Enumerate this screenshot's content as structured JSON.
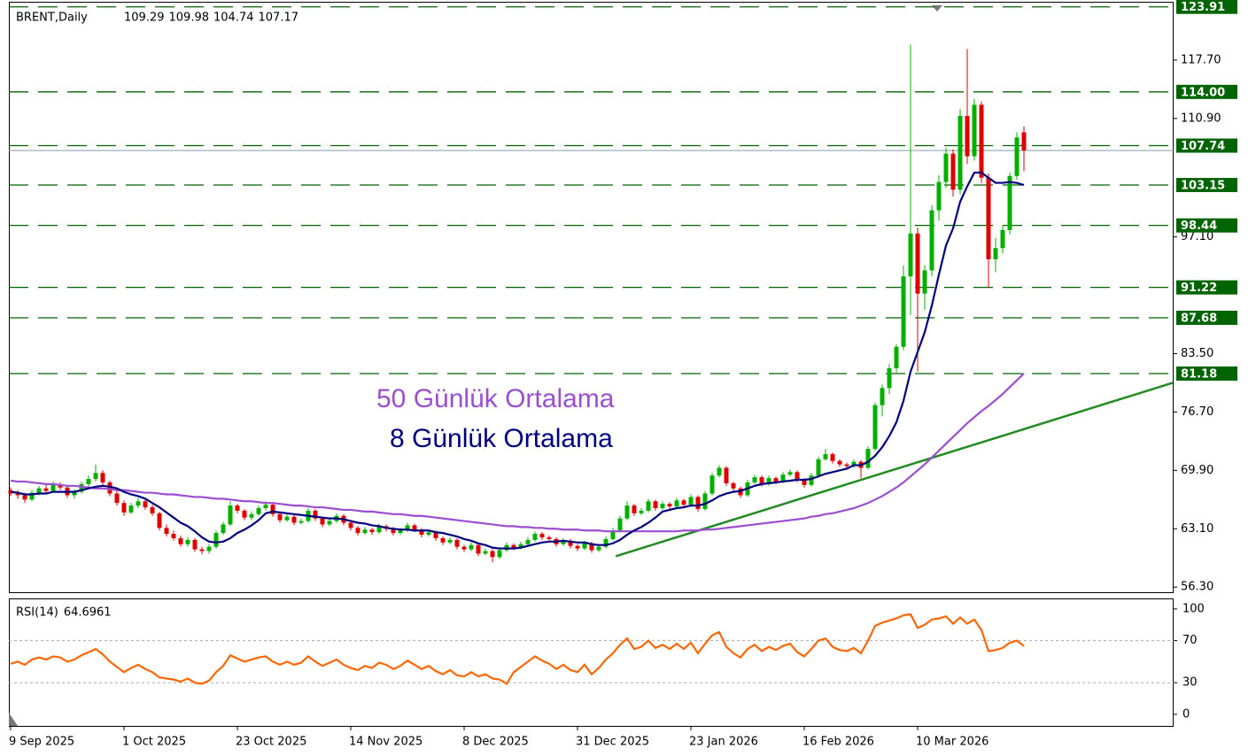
{
  "chart_data": {
    "type": "candlestick",
    "symbol": "BRENT,Daily",
    "up_color": "#00b000",
    "down_color": "#e00000",
    "ylim": [
      55.6,
      124.5
    ],
    "yticks": [
      {
        "value": 56.3,
        "label": "56.30"
      },
      {
        "value": 63.1,
        "label": "63.10"
      },
      {
        "value": 69.9,
        "label": "69.90"
      },
      {
        "value": 76.7,
        "label": "76.70"
      },
      {
        "value": 83.5,
        "label": "83.50"
      },
      {
        "value": 97.1,
        "label": "97.10"
      },
      {
        "value": 110.9,
        "label": "110.90"
      },
      {
        "value": 117.7,
        "label": "117.70"
      }
    ],
    "levels_color": "#006400",
    "levels": [
      {
        "value": 123.91,
        "label": "123.91"
      },
      {
        "value": 114,
        "label": "114.00"
      },
      {
        "value": 107.74,
        "label": "107.74"
      },
      {
        "value": 103.15,
        "label": "103.15"
      },
      {
        "value": 98.44,
        "label": "98.44"
      },
      {
        "value": 91.22,
        "label": "91.22"
      },
      {
        "value": 87.68,
        "label": "87.68"
      },
      {
        "value": 81.18,
        "label": "81.18"
      }
    ],
    "x_labels": [
      {
        "index": 0,
        "label": "9 Sep 2025"
      },
      {
        "index": 16,
        "label": "1 Oct 2025"
      },
      {
        "index": 32,
        "label": "23 Oct 2025"
      },
      {
        "index": 48,
        "label": "14 Nov 2025"
      },
      {
        "index": 64,
        "label": "8 Dec 2025"
      },
      {
        "index": 80,
        "label": "31 Dec 2025"
      },
      {
        "index": 96,
        "label": "23 Jan 2026"
      },
      {
        "index": 112,
        "label": "16 Feb 2026"
      },
      {
        "index": 128,
        "label": "10 Mar 2026"
      }
    ],
    "trendline": {
      "color": "#228b22",
      "points": [
        [
          85.4,
          59.9
        ],
        [
          164,
          80.1
        ]
      ]
    },
    "ohlc": [
      [
        67.6,
        67.9,
        66.9,
        67.2
      ],
      [
        67.2,
        67.6,
        66.6,
        67.0
      ],
      [
        67.0,
        67.3,
        66.1,
        66.5
      ],
      [
        66.5,
        67.6,
        66.3,
        67.3
      ],
      [
        67.3,
        68.1,
        67.0,
        67.8
      ],
      [
        67.8,
        68.2,
        67.2,
        67.5
      ],
      [
        67.5,
        68.6,
        67.3,
        68.2
      ],
      [
        68.2,
        68.5,
        67.6,
        67.9
      ],
      [
        67.9,
        68.1,
        66.7,
        67.0
      ],
      [
        67.0,
        67.7,
        66.6,
        67.4
      ],
      [
        67.4,
        68.6,
        67.2,
        68.3
      ],
      [
        68.3,
        69.3,
        68.0,
        68.9
      ],
      [
        68.9,
        70.6,
        68.6,
        69.6
      ],
      [
        69.6,
        69.9,
        68.2,
        68.5
      ],
      [
        68.5,
        68.7,
        66.9,
        67.2
      ],
      [
        67.2,
        67.5,
        65.8,
        66.1
      ],
      [
        66.1,
        66.4,
        64.6,
        65.0
      ],
      [
        65.0,
        66.1,
        64.8,
        65.8
      ],
      [
        65.8,
        66.7,
        65.5,
        66.3
      ],
      [
        66.3,
        66.5,
        65.3,
        65.6
      ],
      [
        65.6,
        65.9,
        64.6,
        64.9
      ],
      [
        64.9,
        65.1,
        62.9,
        63.2
      ],
      [
        63.2,
        63.6,
        62.2,
        62.5
      ],
      [
        62.5,
        62.9,
        61.7,
        62.0
      ],
      [
        62.0,
        62.3,
        61.0,
        61.3
      ],
      [
        61.3,
        62.1,
        61.0,
        61.8
      ],
      [
        61.8,
        62.0,
        60.4,
        60.7
      ],
      [
        60.7,
        61.0,
        60.1,
        60.5
      ],
      [
        60.5,
        61.3,
        60.2,
        61.0
      ],
      [
        61.0,
        62.9,
        60.8,
        62.6
      ],
      [
        62.6,
        63.9,
        62.4,
        63.6
      ],
      [
        63.6,
        66.3,
        63.4,
        65.8
      ],
      [
        65.8,
        66.0,
        64.9,
        65.2
      ],
      [
        65.2,
        65.4,
        64.1,
        64.4
      ],
      [
        64.4,
        65.1,
        64.1,
        64.8
      ],
      [
        64.8,
        65.8,
        64.6,
        65.5
      ],
      [
        65.5,
        66.3,
        65.2,
        65.9
      ],
      [
        65.9,
        66.1,
        64.5,
        64.8
      ],
      [
        64.8,
        65.0,
        63.8,
        64.1
      ],
      [
        64.1,
        64.8,
        63.9,
        64.5
      ],
      [
        64.5,
        64.7,
        63.5,
        63.8
      ],
      [
        63.8,
        64.3,
        63.6,
        64.0
      ],
      [
        64.0,
        65.5,
        63.8,
        65.2
      ],
      [
        65.2,
        65.4,
        64.0,
        64.3
      ],
      [
        64.3,
        64.5,
        63.3,
        63.6
      ],
      [
        63.6,
        64.3,
        63.4,
        64.0
      ],
      [
        64.0,
        64.9,
        63.8,
        64.6
      ],
      [
        64.6,
        64.8,
        63.5,
        63.8
      ],
      [
        63.8,
        64.0,
        62.9,
        63.2
      ],
      [
        63.2,
        63.4,
        62.3,
        62.6
      ],
      [
        62.6,
        63.3,
        62.4,
        63.0
      ],
      [
        63.0,
        63.2,
        62.4,
        62.7
      ],
      [
        62.7,
        63.7,
        62.5,
        63.4
      ],
      [
        63.4,
        63.6,
        62.8,
        63.1
      ],
      [
        63.1,
        63.3,
        62.3,
        62.6
      ],
      [
        62.6,
        63.2,
        62.4,
        62.9
      ],
      [
        62.9,
        63.8,
        62.7,
        63.5
      ],
      [
        63.5,
        63.7,
        62.7,
        63.0
      ],
      [
        63.0,
        63.2,
        62.1,
        62.4
      ],
      [
        62.4,
        63.0,
        62.2,
        62.7
      ],
      [
        62.7,
        62.9,
        61.7,
        62.0
      ],
      [
        62.0,
        62.2,
        61.2,
        61.5
      ],
      [
        61.5,
        62.1,
        61.3,
        61.8
      ],
      [
        61.8,
        62.0,
        60.7,
        61.0
      ],
      [
        61.0,
        61.2,
        60.4,
        60.7
      ],
      [
        60.7,
        61.5,
        60.5,
        61.2
      ],
      [
        61.2,
        61.4,
        59.9,
        60.2
      ],
      [
        60.2,
        60.8,
        60.0,
        60.5
      ],
      [
        60.5,
        60.7,
        59.2,
        59.8
      ],
      [
        59.8,
        60.9,
        59.6,
        60.6
      ],
      [
        60.6,
        61.5,
        60.4,
        61.2
      ],
      [
        61.2,
        61.4,
        60.6,
        60.9
      ],
      [
        60.9,
        61.6,
        60.7,
        61.3
      ],
      [
        61.3,
        62.1,
        61.1,
        61.8
      ],
      [
        61.8,
        62.8,
        61.6,
        62.5
      ],
      [
        62.5,
        62.7,
        61.8,
        62.1
      ],
      [
        62.1,
        62.3,
        61.6,
        61.9
      ],
      [
        61.9,
        62.1,
        61.0,
        61.3
      ],
      [
        61.3,
        62.0,
        61.1,
        61.7
      ],
      [
        61.7,
        61.9,
        60.8,
        61.1
      ],
      [
        61.1,
        61.3,
        60.5,
        60.8
      ],
      [
        60.8,
        61.7,
        60.6,
        61.4
      ],
      [
        61.4,
        61.6,
        60.3,
        60.6
      ],
      [
        60.6,
        61.3,
        60.4,
        61.0
      ],
      [
        61.0,
        62.2,
        60.8,
        61.9
      ],
      [
        61.9,
        63.2,
        61.7,
        62.9
      ],
      [
        62.9,
        64.6,
        62.7,
        64.3
      ],
      [
        64.3,
        66.3,
        64.1,
        65.8
      ],
      [
        65.8,
        66.0,
        64.6,
        64.9
      ],
      [
        64.9,
        65.5,
        64.7,
        65.2
      ],
      [
        65.2,
        66.6,
        65.0,
        66.3
      ],
      [
        66.3,
        66.5,
        65.2,
        65.5
      ],
      [
        65.5,
        66.3,
        65.3,
        66.0
      ],
      [
        66.0,
        66.2,
        65.4,
        65.7
      ],
      [
        65.7,
        66.7,
        65.5,
        66.4
      ],
      [
        66.4,
        66.6,
        65.6,
        65.9
      ],
      [
        65.9,
        67.1,
        65.7,
        66.8
      ],
      [
        66.8,
        67.0,
        65.1,
        65.4
      ],
      [
        65.4,
        67.5,
        65.2,
        67.2
      ],
      [
        67.2,
        69.6,
        67.0,
        69.3
      ],
      [
        69.3,
        70.5,
        69.1,
        70.2
      ],
      [
        70.2,
        70.4,
        68.1,
        68.4
      ],
      [
        68.4,
        68.6,
        67.5,
        67.8
      ],
      [
        67.8,
        68.0,
        66.7,
        67.0
      ],
      [
        67.0,
        68.8,
        66.8,
        68.5
      ],
      [
        68.5,
        69.4,
        68.3,
        69.1
      ],
      [
        69.1,
        69.3,
        68.0,
        68.3
      ],
      [
        68.3,
        69.3,
        68.1,
        69.0
      ],
      [
        69.0,
        69.2,
        68.3,
        68.6
      ],
      [
        68.6,
        69.7,
        68.4,
        69.4
      ],
      [
        69.4,
        70.0,
        69.2,
        69.7
      ],
      [
        69.7,
        69.9,
        68.5,
        68.8
      ],
      [
        68.8,
        69.0,
        67.9,
        68.2
      ],
      [
        68.2,
        69.6,
        68.0,
        69.3
      ],
      [
        69.3,
        71.5,
        69.1,
        71.2
      ],
      [
        71.2,
        72.4,
        71.0,
        71.8
      ],
      [
        71.8,
        72.0,
        70.7,
        71.0
      ],
      [
        71.0,
        71.2,
        70.3,
        70.6
      ],
      [
        70.6,
        70.8,
        70.1,
        70.4
      ],
      [
        70.4,
        71.2,
        70.2,
        70.9
      ],
      [
        70.9,
        71.1,
        69.0,
        70.2
      ],
      [
        70.2,
        72.7,
        70.0,
        72.4
      ],
      [
        72.4,
        77.8,
        72.2,
        77.5
      ],
      [
        77.5,
        79.9,
        76.2,
        79.5
      ],
      [
        79.5,
        82.3,
        78.8,
        81.8
      ],
      [
        81.8,
        84.6,
        81.3,
        84.3
      ],
      [
        84.3,
        93.8,
        83.9,
        92.5
      ],
      [
        92.5,
        119.5,
        88.0,
        97.5
      ],
      [
        97.5,
        98.2,
        81.4,
        90.5
      ],
      [
        90.5,
        93.8,
        88.6,
        93.2
      ],
      [
        93.2,
        100.8,
        92.5,
        100.2
      ],
      [
        100.2,
        104.3,
        99.0,
        103.5
      ],
      [
        103.5,
        107.5,
        102.8,
        106.8
      ],
      [
        106.8,
        107.3,
        101.8,
        102.6
      ],
      [
        102.6,
        112.0,
        102.1,
        111.2
      ],
      [
        111.2,
        119.0,
        105.6,
        106.5
      ],
      [
        106.5,
        113.2,
        106.0,
        112.5
      ],
      [
        112.5,
        112.9,
        103.4,
        104.0
      ],
      [
        104.0,
        104.5,
        91.2,
        94.5
      ],
      [
        94.5,
        97.0,
        93.0,
        95.8
      ],
      [
        95.8,
        98.4,
        95.2,
        97.9
      ],
      [
        97.9,
        104.6,
        97.4,
        104.2
      ],
      [
        104.2,
        109.3,
        103.8,
        108.7
      ],
      [
        109.29,
        109.98,
        104.74,
        107.17
      ]
    ],
    "series": [
      {
        "name": "50 Günlük Ortalama",
        "color": "#9b4fd0",
        "values": [
          68.7,
          68.6,
          68.6,
          68.5,
          68.4,
          68.3,
          68.3,
          68.2,
          68.1,
          68.1,
          68.0,
          67.9,
          67.8,
          67.8,
          67.7,
          67.6,
          67.6,
          67.5,
          67.4,
          67.3,
          67.3,
          67.2,
          67.1,
          67.1,
          67.0,
          66.9,
          66.8,
          66.8,
          66.7,
          66.6,
          66.6,
          66.5,
          66.4,
          66.3,
          66.3,
          66.2,
          66.1,
          66.1,
          66.0,
          65.9,
          65.8,
          65.8,
          65.7,
          65.6,
          65.6,
          65.5,
          65.4,
          65.3,
          65.3,
          65.2,
          65.1,
          65.1,
          65.0,
          64.9,
          64.8,
          64.8,
          64.7,
          64.6,
          64.6,
          64.5,
          64.4,
          64.3,
          64.2,
          64.1,
          64.0,
          63.9,
          63.8,
          63.7,
          63.6,
          63.5,
          63.4,
          63.4,
          63.3,
          63.3,
          63.2,
          63.2,
          63.1,
          63.1,
          63.0,
          63.0,
          63.0,
          62.9,
          62.9,
          62.9,
          62.8,
          62.8,
          62.8,
          62.8,
          62.8,
          62.8,
          62.8,
          62.8,
          62.8,
          62.8,
          62.8,
          62.9,
          62.9,
          62.9,
          63.0,
          63.0,
          63.1,
          63.2,
          63.3,
          63.4,
          63.5,
          63.6,
          63.7,
          63.8,
          63.9,
          64.0,
          64.1,
          64.2,
          64.3,
          64.5,
          64.6,
          64.8,
          64.9,
          65.1,
          65.3,
          65.5,
          65.8,
          66.1,
          66.5,
          66.9,
          67.4,
          67.9,
          68.5,
          69.2,
          69.9,
          70.6,
          71.4,
          72.2,
          73.0,
          73.8,
          74.6,
          75.4,
          76.1,
          76.8,
          77.4,
          78.1,
          78.8,
          79.6,
          80.4,
          81.2
        ]
      },
      {
        "name": "8 Günlük Ortalama",
        "color": "#000080",
        "values": [
          67.4,
          67.3,
          67.1,
          67.1,
          67.2,
          67.2,
          67.4,
          67.4,
          67.4,
          67.4,
          67.6,
          67.8,
          68.0,
          68.1,
          68.0,
          67.8,
          67.4,
          67.1,
          66.9,
          66.6,
          66.1,
          65.6,
          65.0,
          64.4,
          63.8,
          63.4,
          62.8,
          62.1,
          61.6,
          61.5,
          61.6,
          62.0,
          62.6,
          63.0,
          63.5,
          64.1,
          64.9,
          65.1,
          65.0,
          64.9,
          64.8,
          64.7,
          64.6,
          64.5,
          64.4,
          64.3,
          64.3,
          64.2,
          64.0,
          63.8,
          63.7,
          63.5,
          63.4,
          63.2,
          63.1,
          63.0,
          63.0,
          62.9,
          62.9,
          62.9,
          62.7,
          62.6,
          62.4,
          62.2,
          61.9,
          61.7,
          61.4,
          61.2,
          60.9,
          60.8,
          60.8,
          60.8,
          60.9,
          61.1,
          61.3,
          61.5,
          61.6,
          61.6,
          61.7,
          61.6,
          61.5,
          61.5,
          61.3,
          61.2,
          61.2,
          61.4,
          61.8,
          62.4,
          62.9,
          63.3,
          63.8,
          64.4,
          65.1,
          65.3,
          65.5,
          65.6,
          65.8,
          65.8,
          66.0,
          66.4,
          66.9,
          67.2,
          67.4,
          67.5,
          67.8,
          68.1,
          68.3,
          68.4,
          68.5,
          68.6,
          68.7,
          68.8,
          68.8,
          68.9,
          69.2,
          69.5,
          69.7,
          69.9,
          70.1,
          70.5,
          70.5,
          70.9,
          71.6,
          72.6,
          73.9,
          75.5,
          78.0,
          81.4,
          83.7,
          86.0,
          89.1,
          92.7,
          96.1,
          98.1,
          101.2,
          103.0,
          104.6,
          104.6,
          104.0,
          103.4,
          103.4,
          103.5,
          103.4,
          103.15
        ]
      }
    ],
    "rsi": {
      "label": "RSI(14)",
      "color": "#ff6600",
      "ylim": [
        -11,
        110
      ],
      "yticks": [
        0,
        30,
        70,
        100
      ],
      "levels": [
        30,
        70
      ],
      "values": [
        48,
        50,
        47,
        52,
        54,
        52,
        55,
        54,
        50,
        52,
        56,
        59,
        62,
        57,
        50,
        45,
        40,
        44,
        47,
        43,
        40,
        35,
        34,
        33,
        31,
        34,
        30,
        29,
        32,
        40,
        46,
        56,
        53,
        50,
        52,
        54,
        55,
        50,
        47,
        50,
        47,
        49,
        55,
        50,
        46,
        49,
        52,
        47,
        44,
        42,
        46,
        44,
        49,
        47,
        43,
        46,
        51,
        47,
        43,
        46,
        41,
        38,
        42,
        37,
        36,
        40,
        36,
        38,
        34,
        33,
        29,
        40,
        45,
        50,
        55,
        51,
        48,
        43,
        47,
        42,
        40,
        47,
        38,
        44,
        52,
        58,
        66,
        72,
        62,
        64,
        70,
        63,
        66,
        62,
        67,
        62,
        68,
        58,
        67,
        75,
        78,
        64,
        58,
        54,
        62,
        66,
        60,
        64,
        61,
        65,
        67,
        59,
        55,
        62,
        70,
        72,
        64,
        61,
        60,
        63,
        58,
        70,
        84,
        87,
        89,
        91,
        94,
        95,
        82,
        85,
        90,
        91,
        93,
        86,
        92,
        86,
        90,
        80,
        60,
        61,
        63,
        68,
        70,
        64.6961
      ]
    }
  }
}
